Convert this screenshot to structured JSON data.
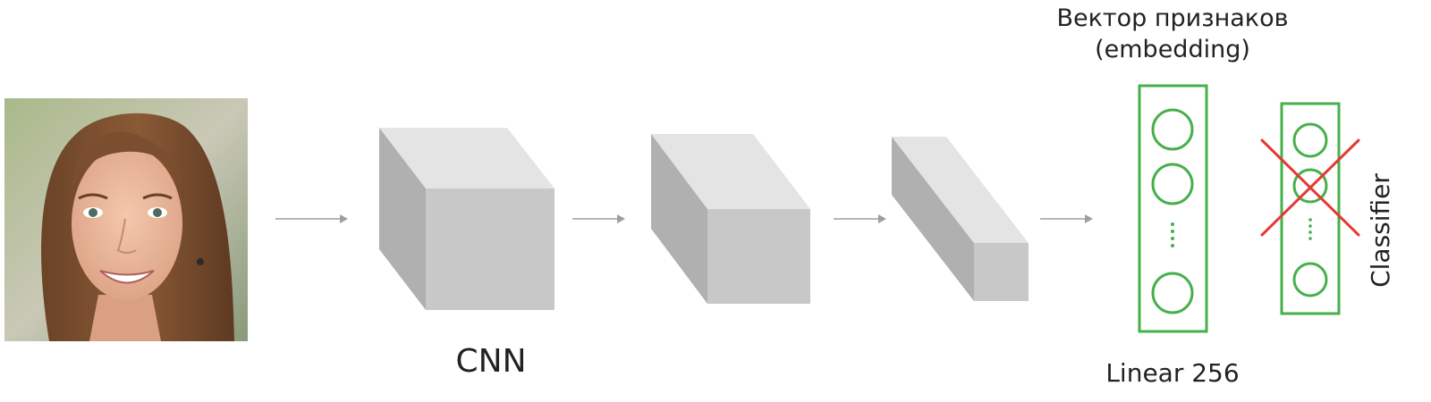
{
  "labels": {
    "cnn": "CNN",
    "embedding_line1": "Вектор признаков",
    "embedding_line2": "(embedding)",
    "linear": "Linear 256",
    "classifier": "Classifier"
  },
  "icons": {
    "photo": "face-photo-icon",
    "arrow": "arrow-right-icon",
    "block": "feature-map-block-icon",
    "removed": "cross-mark-icon"
  },
  "colors": {
    "layer_border": "#46b04a",
    "cross": "#e53935",
    "arrow": "#9e9e9e",
    "block_front": "#c8c8c8",
    "block_top": "#e4e4e4",
    "block_side": "#b0b0b0"
  }
}
